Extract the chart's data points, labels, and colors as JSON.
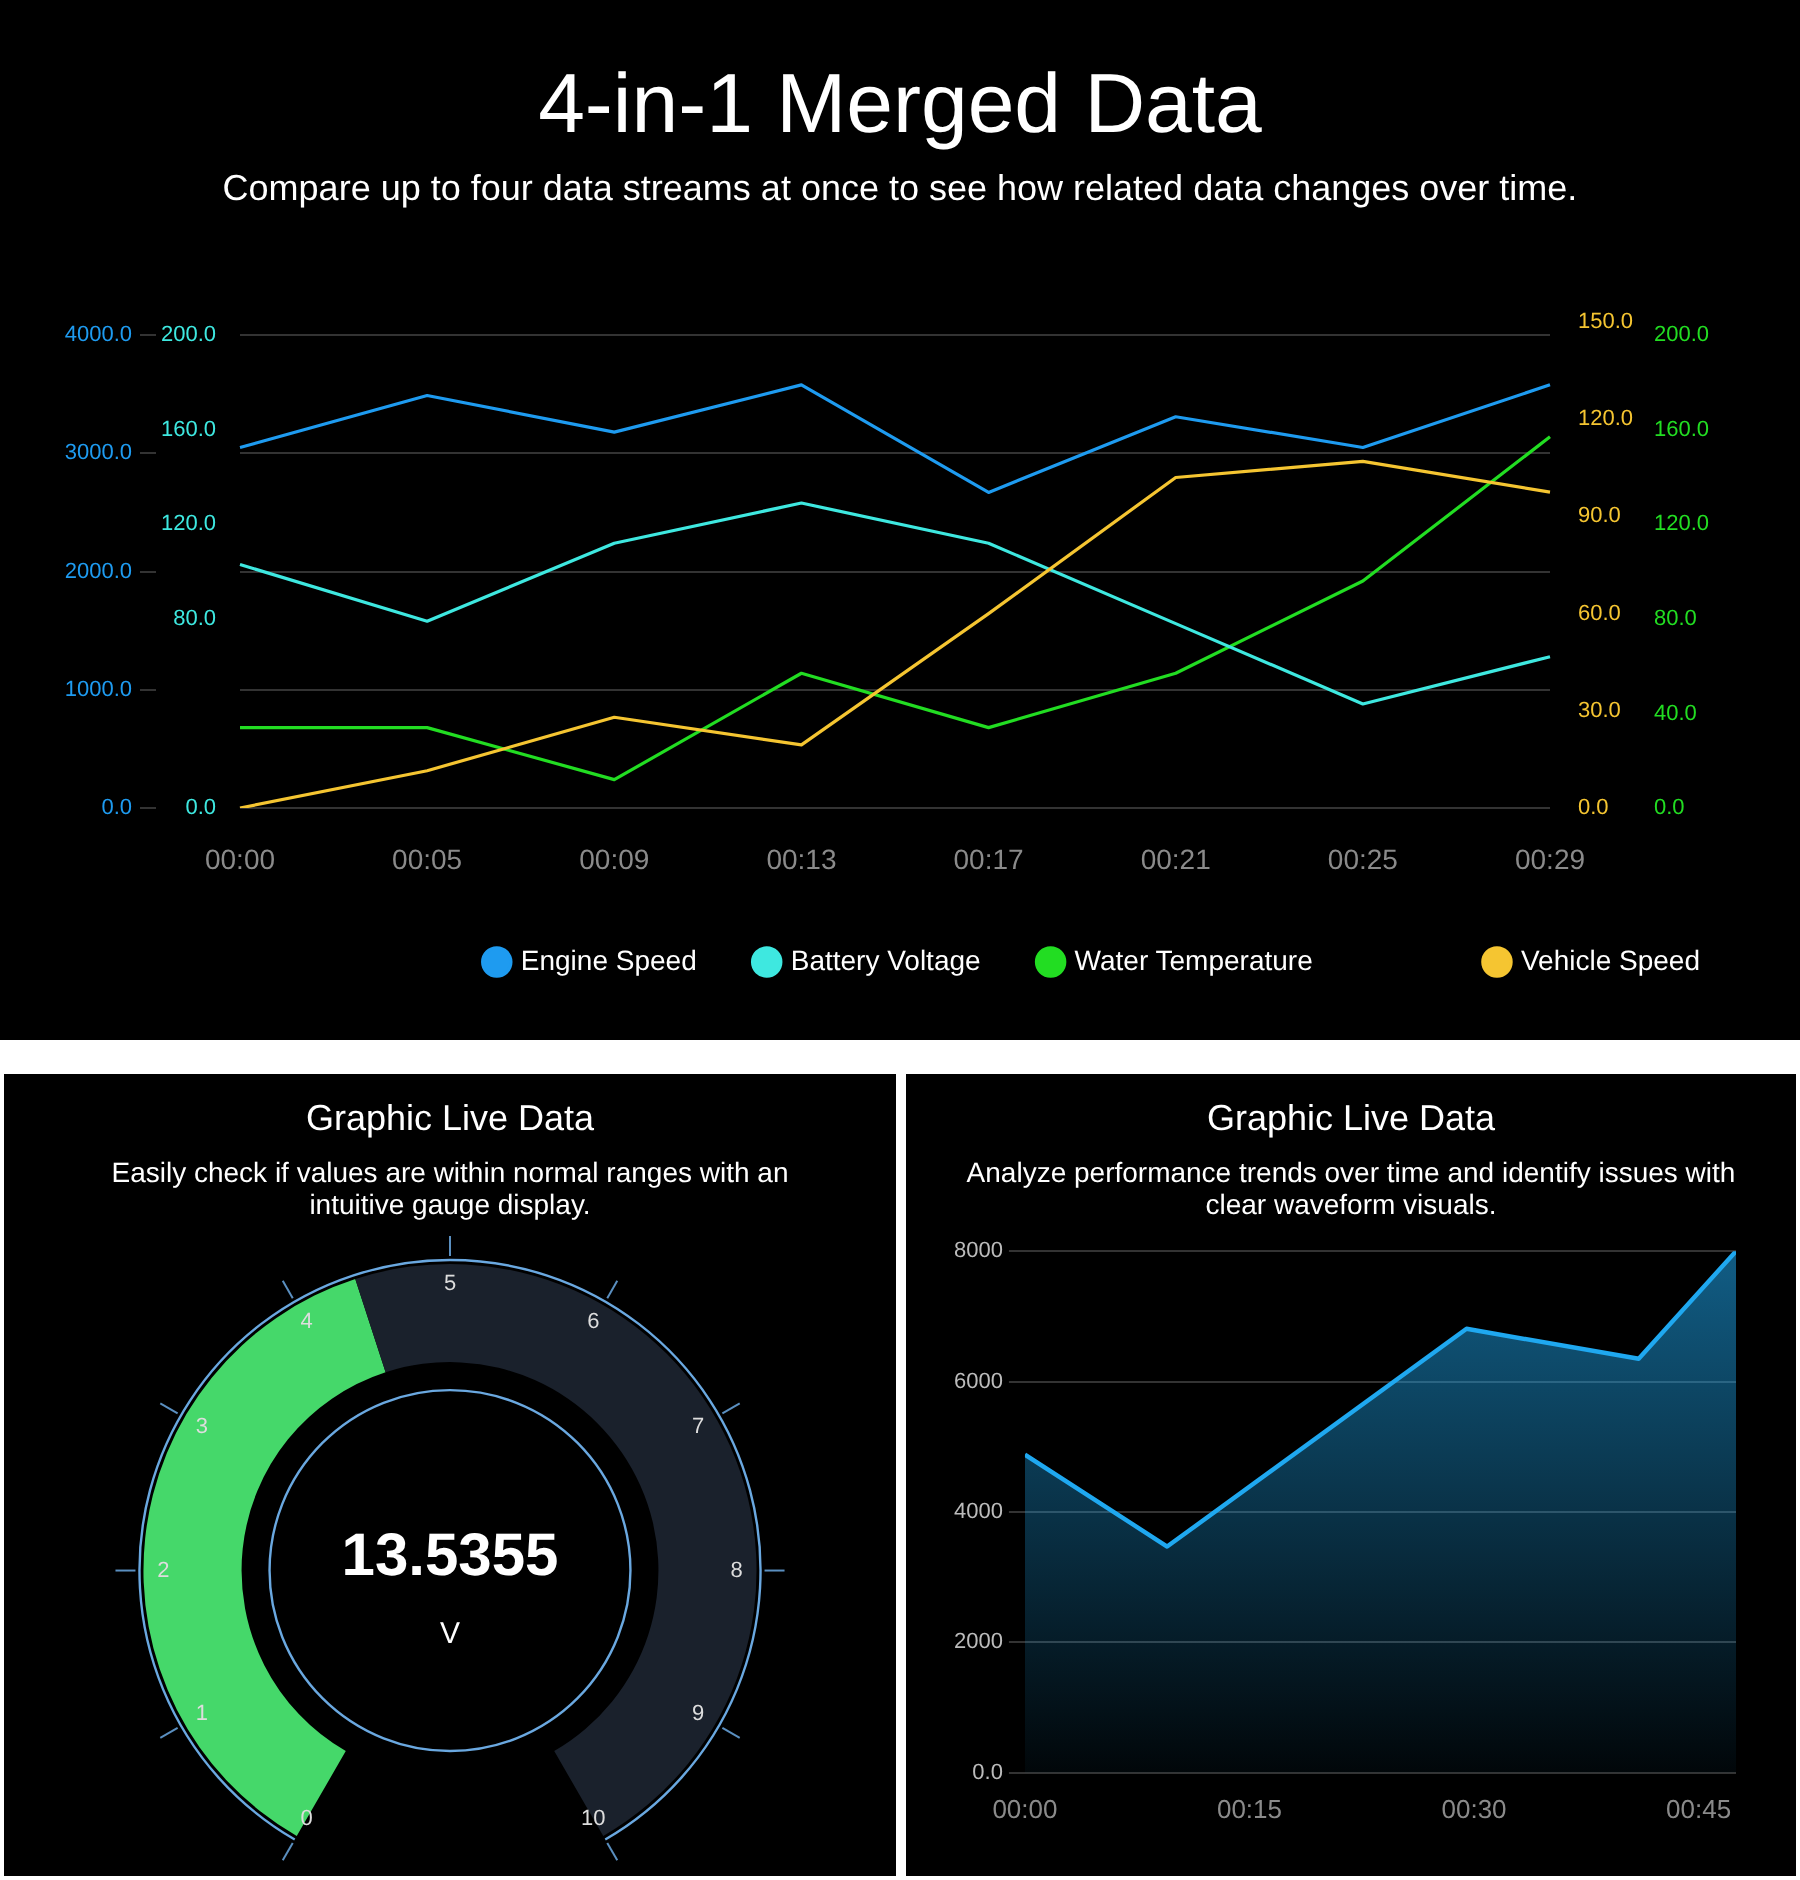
{
  "chart_data": [
    {
      "type": "line",
      "title": "4-in-1 Merged Data",
      "subtitle": "Compare up to four data streams at once to see how related data changes over time.",
      "categories": [
        "00:00",
        "00:05",
        "00:09",
        "00:13",
        "00:17",
        "00:21",
        "00:25",
        "00:29"
      ],
      "series": [
        {
          "name": "Engine Speed",
          "color": "#1e9bf0",
          "values": [
            3050,
            3490,
            3180,
            3580,
            2670,
            3310,
            3050,
            3580
          ]
        },
        {
          "name": "Battery Voltage",
          "color": "#3ee8e0",
          "axis": "y2",
          "values": [
            103,
            79,
            112,
            129,
            112,
            78,
            44,
            64
          ]
        },
        {
          "name": "Water Temperature",
          "color": "#22dd22",
          "axis": "y3",
          "values": [
            34,
            34,
            12,
            57,
            34,
            57,
            96,
            157
          ]
        }
      ],
      "ylim": [
        0,
        4000
      ],
      "yticks": [
        {
          "value": 0,
          "label": "0.0"
        },
        {
          "value": 1000,
          "label": "1000.0"
        },
        {
          "value": 2000,
          "label": "2000.0"
        },
        {
          "value": 3000,
          "label": "3000.0"
        },
        {
          "value": 4000,
          "label": "4000.0"
        }
      ],
      "y2lim": [
        0,
        200
      ],
      "y2ticks": [
        {
          "value": 0,
          "label": "0.0"
        },
        {
          "value": 80,
          "label": "80.0"
        },
        {
          "value": 120,
          "label": "120.0"
        },
        {
          "value": 160,
          "label": "160.0"
        },
        {
          "value": 200,
          "label": "200.0"
        }
      ],
      "y3lim": [
        0,
        200
      ],
      "y3ticks": [
        {
          "value": 0,
          "label": "0.0"
        },
        {
          "value": 40,
          "label": "40.0"
        },
        {
          "value": 80,
          "label": "80.0"
        },
        {
          "value": 120,
          "label": "120.0"
        },
        {
          "value": 160,
          "label": "160.0"
        },
        {
          "value": 200,
          "label": "200.0"
        }
      ],
      "grid": "y",
      "legend": "bottom"
    },
    {
      "type": "line",
      "categories": [
        null,
        null,
        null,
        null,
        null,
        null,
        null,
        null
      ],
      "series": [
        {
          "name": "Vehicle Speed",
          "color": "#f5c531",
          "values": [
            0,
            11.5,
            28,
            19.5,
            60,
            102,
            107,
            97.5
          ]
        }
      ],
      "ylim": [
        0,
        150
      ],
      "yticks": [
        {
          "value": 0,
          "label": "0.0"
        },
        {
          "value": 30,
          "label": "30.0"
        },
        {
          "value": 60,
          "label": "60.0"
        },
        {
          "value": 90,
          "label": "90.0"
        },
        {
          "value": 120,
          "label": "120.0"
        },
        {
          "value": 150,
          "label": "150.0"
        }
      ],
      "tick_labels": "y",
      "legend": "bottom right"
    },
    {
      "type": "donut",
      "title": "Graphic Live Data",
      "subtitle": "Easily check if values are within normal ranges with an intuitive gauge display.",
      "categories": [
        null,
        null
      ],
      "values": [
        44,
        56
      ],
      "colors": [
        "#45d86a",
        "#1a212c"
      ],
      "annotations": [
        "13.5355",
        "V",
        "0",
        "1",
        "2",
        "3",
        "4",
        "5",
        "6",
        "7",
        "8",
        "9",
        "10"
      ]
    },
    {
      "type": "area",
      "title": "Graphic Live Data",
      "subtitle": "Analyze performance trends over time and identify issues with clear waveform visuals.",
      "x": [
        0,
        9.5,
        29.5,
        41,
        47.5
      ],
      "values": [
        4880,
        3470,
        6810,
        6350,
        8000
      ],
      "color": "#1fa8f0",
      "xlim": [
        0,
        47.5
      ],
      "xticks": [
        {
          "value": 0,
          "label": "00:00"
        },
        {
          "value": 15,
          "label": "00:15"
        },
        {
          "value": 30,
          "label": "00:30"
        },
        {
          "value": 45,
          "label": "00:45"
        }
      ],
      "ylim": [
        0,
        8000
      ],
      "yticks": [
        {
          "value": 0,
          "label": "0.0"
        },
        2000,
        4000,
        6000,
        8000
      ],
      "grid": "y"
    }
  ]
}
